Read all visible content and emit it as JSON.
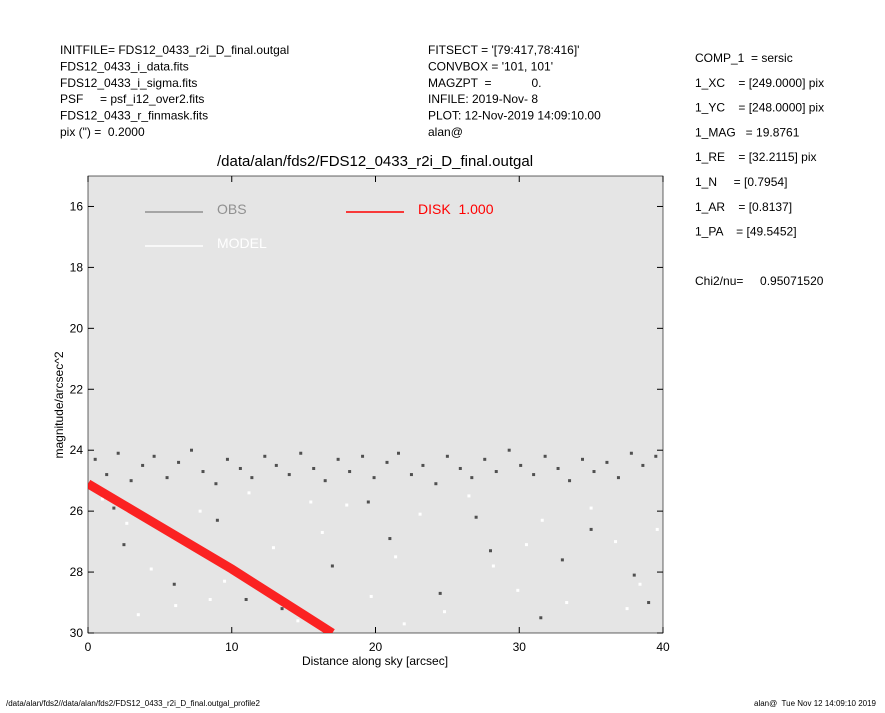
{
  "chart_data": {
    "type": "scatter",
    "title": "/data/alan/fds2/FDS12_0433_r2i_D_final.outgal",
    "xlabel": "Distance along sky [arcsec]",
    "ylabel": "magnitude/arcsec^2",
    "xlim": [
      0,
      40
    ],
    "ylim": [
      15,
      30
    ],
    "y_inverted": true,
    "xticks": [
      0,
      10,
      20,
      30,
      40
    ],
    "yticks": [
      16,
      18,
      20,
      22,
      24,
      26,
      28,
      30
    ],
    "background": "#e5e5e5",
    "header_left": [
      "INITFILE= FDS12_0433_r2i_D_final.outgal",
      "FDS12_0433_i_data.fits",
      "FDS12_0433_i_sigma.fits",
      "PSF     = psf_i12_over2.fits",
      "FDS12_0433_r_finmask.fits",
      "pix (\") =  0.2000"
    ],
    "header_middle": [
      "FITSECT = '[79:417,78:416]'",
      "CONVBOX = '101, 101'",
      "MAGZPT  =            0.",
      "INFILE: 2019-Nov- 8",
      "PLOT: 12-Nov-2019 14:09:10.00",
      "alan@"
    ],
    "header_right": [
      "COMP_1  = sersic",
      "1_XC    = [249.0000] pix",
      "1_YC    = [248.0000] pix",
      "1_MAG   = 19.8761",
      "1_RE    = [32.2115] pix",
      "1_N     = [0.7954]",
      "1_AR    = [0.8137]",
      "1_PA    = [49.5452]",
      "Chi2/nu=     0.95071520"
    ],
    "footer_left": "/data/alan/fds2//data/alan/fds2/FDS12_0433_r2i_D_final.outgal_profile2",
    "footer_right": "alan@  Tue Nov 12 14:09:10 2019",
    "series": [
      {
        "name": "OBS",
        "color": "#505050",
        "mode": "points",
        "x": [
          0.5,
          1.3,
          2.1,
          3.0,
          3.8,
          4.6,
          5.5,
          6.3,
          7.2,
          8.0,
          8.9,
          9.7,
          10.6,
          11.4,
          12.3,
          13.1,
          14.0,
          14.8,
          15.7,
          16.5,
          17.4,
          18.2,
          19.1,
          19.9,
          20.8,
          21.6,
          22.5,
          23.3,
          24.2,
          25.0,
          25.9,
          26.7,
          27.6,
          28.4,
          29.3,
          30.1,
          31.0,
          31.8,
          32.7,
          33.5,
          34.4,
          35.2,
          36.1,
          36.9,
          37.8,
          38.6,
          39.5,
          2.5,
          6.0,
          9.0,
          13.5,
          17.0,
          21.0,
          24.5,
          28.0,
          31.5,
          35.0,
          38.0,
          1.8,
          11.0,
          19.5,
          27.0,
          33.0,
          39.0
        ],
        "values": [
          24.3,
          24.8,
          24.1,
          25.0,
          24.5,
          24.2,
          24.9,
          24.4,
          24.0,
          24.7,
          25.1,
          24.3,
          24.6,
          24.9,
          24.2,
          24.5,
          24.8,
          24.1,
          24.6,
          25.0,
          24.3,
          24.7,
          24.2,
          24.9,
          24.4,
          24.1,
          24.8,
          24.5,
          25.1,
          24.2,
          24.6,
          24.9,
          24.3,
          24.7,
          24.0,
          24.5,
          24.8,
          24.2,
          24.6,
          25.0,
          24.3,
          24.7,
          24.4,
          24.9,
          24.1,
          24.5,
          24.2,
          27.1,
          28.4,
          26.3,
          29.2,
          27.8,
          26.9,
          28.7,
          27.3,
          29.5,
          26.6,
          28.1,
          25.9,
          28.9,
          25.7,
          26.2,
          27.6,
          29.0
        ]
      },
      {
        "name": "MODEL",
        "color": "#ffffff",
        "mode": "points",
        "x": [
          1.0,
          2.7,
          4.4,
          6.1,
          7.8,
          9.5,
          11.2,
          12.9,
          14.6,
          16.3,
          18.0,
          19.7,
          21.4,
          23.1,
          24.8,
          26.5,
          28.2,
          29.9,
          31.6,
          33.3,
          35.0,
          36.7,
          38.4,
          39.6,
          3.5,
          8.5,
          15.5,
          22.0,
          30.5,
          37.5
        ],
        "values": [
          25.6,
          26.4,
          27.9,
          29.1,
          26.0,
          28.3,
          25.4,
          27.2,
          29.6,
          26.7,
          25.8,
          28.8,
          27.5,
          26.1,
          29.3,
          25.5,
          27.8,
          28.6,
          26.3,
          29.0,
          25.9,
          27.0,
          28.4,
          26.6,
          29.4,
          28.9,
          25.7,
          29.7,
          27.1,
          29.2
        ]
      },
      {
        "name": "DISK  1.000",
        "color": "#ff0000",
        "mode": "line",
        "x": [
          0,
          5,
          10,
          15,
          17
        ],
        "values": [
          25.1,
          26.5,
          27.9,
          29.4,
          30
        ]
      }
    ]
  }
}
